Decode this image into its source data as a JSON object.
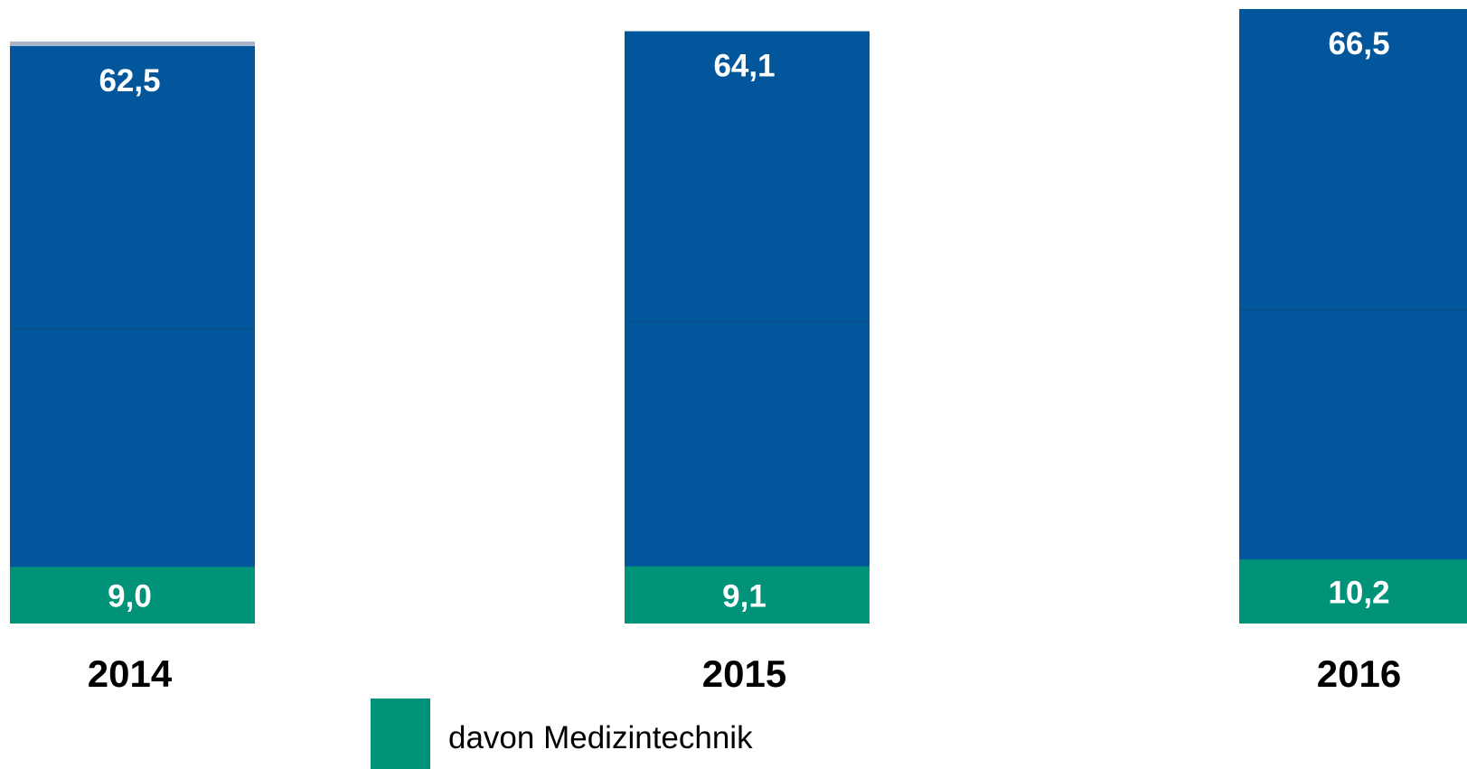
{
  "chart_data": {
    "type": "bar",
    "stacked": false,
    "categories": [
      "2014",
      "2015",
      "2016"
    ],
    "series": [
      {
        "values": [
          62.5,
          64.1,
          66.5
        ],
        "labels": [
          "62,5",
          "64,1",
          "66,5"
        ],
        "color": "#02569B"
      },
      {
        "name": "davon Medizintechnik",
        "values": [
          9.0,
          9.1,
          10.2
        ],
        "labels": [
          "9,0",
          "9,1",
          "10,2"
        ],
        "color": "#009379"
      }
    ],
    "baseline_value": 0,
    "gridlines": false,
    "legend": {
      "position": "bottom-center",
      "entries": [
        "davon Medizintechnik"
      ]
    },
    "colors": {
      "total_bar": "#02569B",
      "total_bar_edge": "#0A4A86",
      "total_bar_top_accent": "#A9B4C9",
      "subset_bar": "#009379",
      "value_label": "#FFFFFF",
      "category_label": "#000000"
    }
  }
}
